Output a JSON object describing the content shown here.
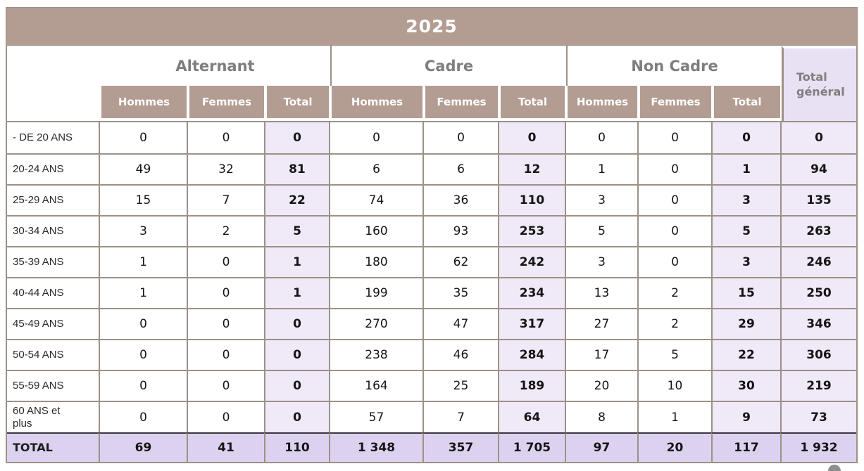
{
  "chart_data": {
    "type": "table",
    "title": "2025",
    "groups": [
      {
        "label": "Alternant",
        "columns": [
          "Hommes",
          "Femmes",
          "Total"
        ]
      },
      {
        "label": "Cadre",
        "columns": [
          "Hommes",
          "Femmes",
          "Total"
        ]
      },
      {
        "label": "Non Cadre",
        "columns": [
          "Hommes",
          "Femmes",
          "Total"
        ]
      }
    ],
    "total_general_header": "Total général",
    "rows": [
      {
        "label": "- DE 20 ANS",
        "alternant": [
          "0",
          "0",
          "0"
        ],
        "cadre": [
          "0",
          "0",
          "0"
        ],
        "non_cadre": [
          "0",
          "0",
          "0"
        ],
        "total_general": "0"
      },
      {
        "label": "20-24 ANS",
        "alternant": [
          "49",
          "32",
          "81"
        ],
        "cadre": [
          "6",
          "6",
          "12"
        ],
        "non_cadre": [
          "1",
          "0",
          "1"
        ],
        "total_general": "94"
      },
      {
        "label": "25-29 ANS",
        "alternant": [
          "15",
          "7",
          "22"
        ],
        "cadre": [
          "74",
          "36",
          "110"
        ],
        "non_cadre": [
          "3",
          "0",
          "3"
        ],
        "total_general": "135"
      },
      {
        "label": "30-34 ANS",
        "alternant": [
          "3",
          "2",
          "5"
        ],
        "cadre": [
          "160",
          "93",
          "253"
        ],
        "non_cadre": [
          "5",
          "0",
          "5"
        ],
        "total_general": "263"
      },
      {
        "label": "35-39 ANS",
        "alternant": [
          "1",
          "0",
          "1"
        ],
        "cadre": [
          "180",
          "62",
          "242"
        ],
        "non_cadre": [
          "3",
          "0",
          "3"
        ],
        "total_general": "246"
      },
      {
        "label": "40-44 ANS",
        "alternant": [
          "1",
          "0",
          "1"
        ],
        "cadre": [
          "199",
          "35",
          "234"
        ],
        "non_cadre": [
          "13",
          "2",
          "15"
        ],
        "total_general": "250"
      },
      {
        "label": "45-49 ANS",
        "alternant": [
          "0",
          "0",
          "0"
        ],
        "cadre": [
          "270",
          "47",
          "317"
        ],
        "non_cadre": [
          "27",
          "2",
          "29"
        ],
        "total_general": "346"
      },
      {
        "label": "50-54 ANS",
        "alternant": [
          "0",
          "0",
          "0"
        ],
        "cadre": [
          "238",
          "46",
          "284"
        ],
        "non_cadre": [
          "17",
          "5",
          "22"
        ],
        "total_general": "306"
      },
      {
        "label": "55-59 ANS",
        "alternant": [
          "0",
          "0",
          "0"
        ],
        "cadre": [
          "164",
          "25",
          "189"
        ],
        "non_cadre": [
          "20",
          "10",
          "30"
        ],
        "total_general": "219"
      },
      {
        "label": "60 ANS et\nplus",
        "alternant": [
          "0",
          "0",
          "0"
        ],
        "cadre": [
          "57",
          "7",
          "64"
        ],
        "non_cadre": [
          "8",
          "1",
          "9"
        ],
        "total_general": "73"
      }
    ],
    "total_row": {
      "label": "TOTAL",
      "alternant": [
        "69",
        "41",
        "110"
      ],
      "cadre": [
        "1 348",
        "357",
        "1 705"
      ],
      "non_cadre": [
        "97",
        "20",
        "117"
      ],
      "total_general": "1 932"
    }
  },
  "colors": {
    "header_fill": "#b39c92",
    "grid_line": "#9d9186",
    "group_text": "#7e7e7e",
    "total_col_fill": "#efe9f8",
    "total_general_fill": "#e8e1f3",
    "grand_row_fill": "#dcd2f0",
    "grand_row_top_border": "#3b3741",
    "body_text": "#151515"
  }
}
